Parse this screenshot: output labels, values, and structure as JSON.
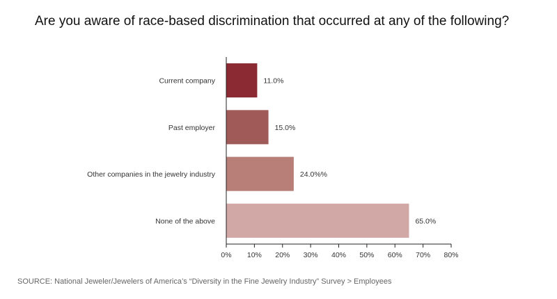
{
  "title": "Are you aware of race-based discrimination that occurred at any of the following?",
  "source": "SOURCE: National Jeweler/Jewelers of America’s “Diversity in the Fine Jewelry Industry” Survey > Employees",
  "colors": {
    "bars": [
      "#8b2a33",
      "#a05a58",
      "#b87f79",
      "#d1a8a5"
    ],
    "axis": "#222222"
  },
  "chart_data": {
    "type": "bar",
    "orientation": "horizontal",
    "categories": [
      "Current company",
      "Past employer",
      "Other companies in the jewelry industry",
      "None of the above"
    ],
    "values": [
      11.0,
      15.0,
      24.0,
      65.0
    ],
    "data_labels": [
      "11.0%",
      "15.0%",
      "24.0%%",
      "65.0%"
    ],
    "xlim": [
      0,
      80
    ],
    "x_ticks": [
      0,
      10,
      20,
      30,
      40,
      50,
      60,
      70,
      80
    ],
    "x_tick_labels": [
      "0%",
      "10%",
      "20%",
      "30%",
      "40%",
      "50%",
      "60%",
      "70%",
      "80%"
    ],
    "grid": false,
    "legend": "none"
  }
}
